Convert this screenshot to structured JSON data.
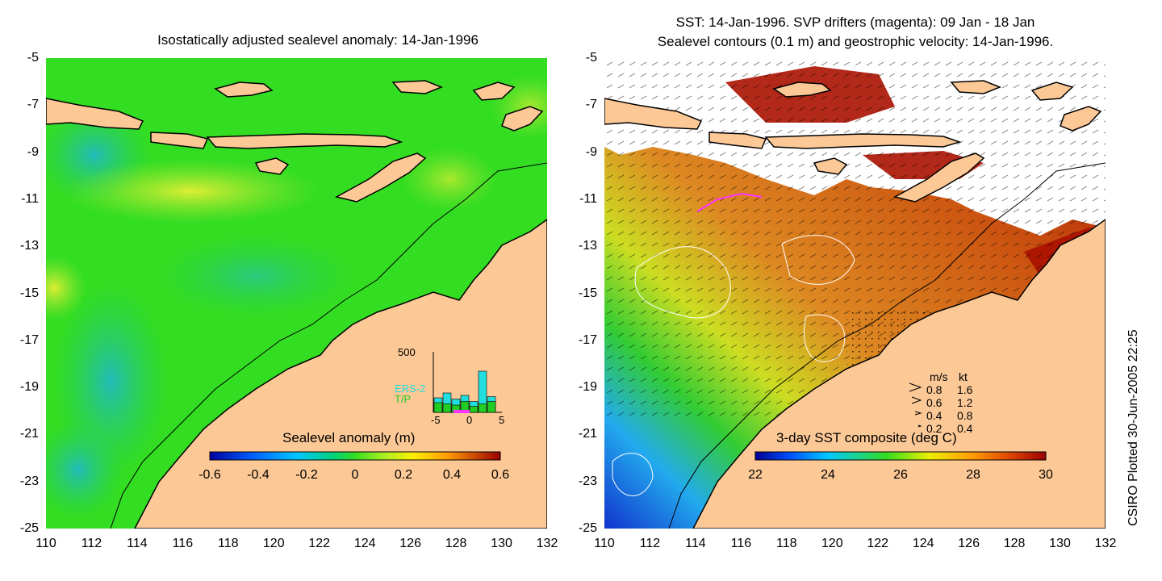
{
  "left_panel": {
    "title": "Isostatically adjusted sealevel anomaly: 14-Jan-1996",
    "colorbar_label": "Sealevel anomaly (m)",
    "colorbar_ticks": [
      "-0.6",
      "-0.4",
      "-0.2",
      "0",
      "0.2",
      "0.4",
      "0.6"
    ],
    "inset": {
      "ymax_label": "500",
      "series": [
        "ERS-2",
        "T/P"
      ],
      "series_colors": [
        "#22dddd",
        "#22cc22"
      ],
      "x_ticks": [
        "-5",
        "0",
        "5"
      ],
      "ers2_counts": [
        120,
        160,
        110,
        140,
        90,
        340,
        130
      ],
      "tp_counts": [
        80,
        70,
        60,
        90,
        50,
        70,
        90
      ]
    }
  },
  "right_panel": {
    "title_line1": "SST: 14-Jan-1996. SVP drifters (magenta): 09 Jan - 18 Jan",
    "title_line2": "Sealevel contours (0.1 m) and geostrophic velocity: 14-Jan-1996.",
    "colorbar_label": "3-day SST composite (deg C)",
    "colorbar_ticks": [
      "22",
      "24",
      "26",
      "28",
      "30"
    ],
    "velocity_legend": {
      "header_ms": "m/s",
      "header_kt": "kt",
      "rows": [
        {
          "ms": "0.8",
          "kt": "1.6"
        },
        {
          "ms": "0.6",
          "kt": "1.2"
        },
        {
          "ms": "0.4",
          "kt": "0.8"
        },
        {
          "ms": "0.2",
          "kt": "0.4"
        }
      ]
    }
  },
  "axes": {
    "lat_labels": [
      "-5",
      "-7",
      "-9",
      "-11",
      "-13",
      "-15",
      "-17",
      "-19",
      "-21",
      "-23",
      "-25"
    ],
    "lon_labels": [
      "110",
      "112",
      "114",
      "116",
      "118",
      "120",
      "122",
      "124",
      "126",
      "128",
      "130",
      "132"
    ],
    "lat_range": [
      -25,
      -5
    ],
    "lon_range": [
      110,
      132
    ]
  },
  "credit": "CSIRO Plotted 30-Jun-2005 22:25",
  "colors": {
    "land": "#fcc896",
    "sea_green": "#33dd22",
    "sst_orange": "#cc6622",
    "sst_red": "#aa1100",
    "cloud": "#ffffff",
    "drifter": "#ff33ff"
  }
}
